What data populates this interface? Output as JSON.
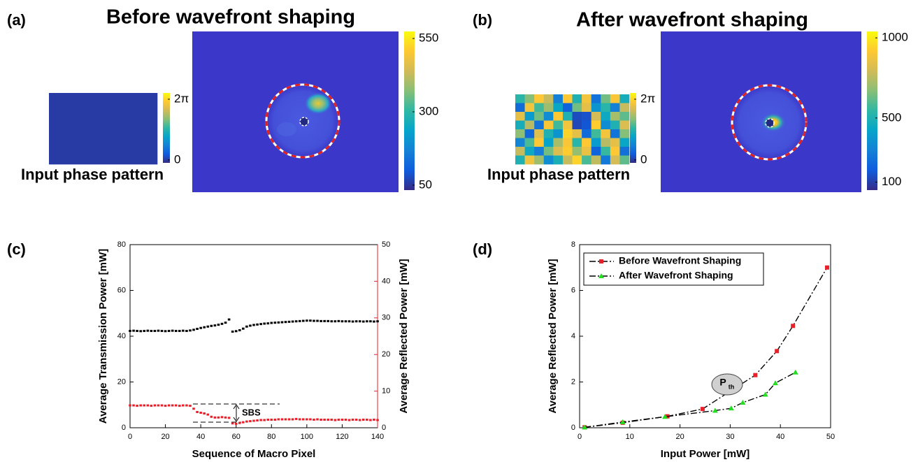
{
  "chart_data": [
    {
      "type": "image",
      "label": "(a)",
      "title": "Before wavefront shaping",
      "phase_pattern": {
        "caption": "Input phase pattern",
        "values": [
          [
            0
          ]
        ]
      },
      "phase_colorbar": {
        "lim": [
          -0.3,
          6.93
        ],
        "ticks": [
          0,
          {
            "value": 6.283,
            "label": "2π"
          }
        ]
      },
      "colorbar": {
        "lim": [
          33,
          574
        ],
        "ticks": [
          50,
          300,
          550
        ]
      }
    },
    {
      "type": "image",
      "label": "(b)",
      "title": "After wavefront shaping",
      "phase_pattern": {
        "caption": "Input phase pattern",
        "values": [
          [
            3.2,
            4.2,
            6.0,
            5.0,
            1.5,
            6.0,
            3.0,
            5.8,
            1.2,
            4.0,
            5.9,
            2.8
          ],
          [
            1.0,
            5.8,
            3.5,
            4.5,
            2.5,
            0.8,
            4.0,
            5.5,
            2.0,
            3.2,
            1.5,
            5.0
          ],
          [
            5.5,
            2.2,
            4.0,
            1.8,
            6.0,
            3.0,
            0.3,
            0.4,
            5.2,
            2.6,
            4.6,
            3.8
          ],
          [
            2.8,
            4.8,
            1.2,
            5.9,
            3.5,
            5.8,
            0.2,
            0.5,
            6.1,
            1.8,
            3.0,
            5.3
          ],
          [
            4.3,
            0.9,
            5.4,
            3.0,
            2.0,
            6.2,
            5.5,
            1.0,
            3.5,
            5.8,
            1.2,
            4.2
          ],
          [
            1.6,
            3.6,
            6.0,
            2.4,
            4.6,
            5.9,
            3.2,
            6.0,
            2.2,
            4.8,
            5.5,
            2.5
          ],
          [
            5.0,
            2.6,
            1.4,
            4.0,
            5.3,
            6.1,
            4.4,
            5.6,
            0.8,
            3.4,
            6.0,
            1.1
          ],
          [
            3.0,
            5.7,
            4.5,
            1.8,
            2.9,
            5.0,
            6.2,
            3.6,
            4.9,
            1.3,
            5.2,
            3.8
          ]
        ]
      },
      "phase_colorbar": {
        "lim": [
          -0.3,
          6.93
        ],
        "ticks": [
          0,
          {
            "value": 6.283,
            "label": "2π"
          }
        ]
      },
      "colorbar": {
        "lim": [
          50,
          1040
        ],
        "ticks": [
          100,
          500,
          1000
        ]
      }
    },
    {
      "type": "scatter",
      "label": "(c)",
      "xlabel": "Sequence of Macro Pixel",
      "ylabel": "Average Transmission Power [mW]",
      "y2label": "Average Reflected Power [mW]",
      "y2color": "#e8202a",
      "xlim": [
        0,
        140
      ],
      "xticks": [
        0,
        20,
        40,
        60,
        80,
        100,
        120,
        140
      ],
      "ylim": [
        0,
        80
      ],
      "yticks": [
        0,
        20,
        40,
        60,
        80
      ],
      "y2lim": [
        0,
        50
      ],
      "y2ticks": [
        0,
        10,
        20,
        30,
        40,
        50
      ],
      "annotations": [
        {
          "text": "SBS"
        }
      ],
      "x": [
        0,
        2,
        4,
        6,
        8,
        10,
        12,
        14,
        16,
        18,
        20,
        22,
        24,
        26,
        28,
        30,
        32,
        34,
        36,
        38,
        40,
        42,
        44,
        46,
        48,
        50,
        52,
        54,
        56,
        58,
        60,
        62,
        64,
        66,
        68,
        70,
        72,
        74,
        76,
        78,
        80,
        82,
        84,
        86,
        88,
        90,
        92,
        94,
        96,
        98,
        100,
        102,
        104,
        106,
        108,
        110,
        112,
        114,
        116,
        118,
        120,
        122,
        124,
        126,
        128,
        130,
        132,
        134,
        136,
        138,
        140
      ],
      "series": [
        {
          "color": "#000000",
          "values": [
            42.3,
            42.4,
            42.3,
            42.2,
            42.3,
            42.4,
            42.3,
            42.3,
            42.4,
            42.3,
            42.2,
            42.3,
            42.4,
            42.3,
            42.3,
            42.4,
            42.3,
            42.5,
            42.8,
            43.2,
            43.6,
            43.9,
            44.2,
            44.5,
            44.7,
            45.0,
            45.4,
            45.9,
            47.3,
            42.0,
            42.2,
            42.6,
            43.3,
            44.2,
            44.6,
            44.9,
            45.1,
            45.3,
            45.5,
            45.6,
            45.8,
            45.9,
            46.0,
            46.1,
            46.2,
            46.3,
            46.4,
            46.5,
            46.6,
            46.7,
            46.8,
            46.8,
            46.7,
            46.7,
            46.6,
            46.6,
            46.6,
            46.5,
            46.5,
            46.6,
            46.5,
            46.5,
            46.5,
            46.4,
            46.5,
            46.5,
            46.4,
            46.5,
            46.5,
            46.4,
            46.5
          ]
        },
        {
          "color": "#e8202a",
          "axis": "y2",
          "values": [
            6.1,
            6.1,
            6.0,
            6.1,
            6.1,
            6.1,
            6.0,
            6.1,
            6.1,
            6.1,
            6.0,
            6.1,
            6.1,
            6.1,
            6.0,
            6.1,
            6.1,
            6.0,
            5.2,
            4.3,
            4.1,
            3.9,
            3.6,
            3.0,
            2.8,
            2.8,
            2.9,
            2.8,
            2.7,
            1.2,
            1.1,
            1.3,
            1.5,
            1.7,
            1.8,
            1.9,
            2.0,
            2.1,
            2.1,
            2.2,
            2.2,
            2.2,
            2.3,
            2.3,
            2.3,
            2.3,
            2.3,
            2.4,
            2.3,
            2.3,
            2.3,
            2.3,
            2.2,
            2.3,
            2.2,
            2.2,
            2.2,
            2.2,
            2.1,
            2.2,
            2.2,
            2.2,
            2.1,
            2.2,
            2.2,
            2.1,
            2.2,
            2.2,
            2.1,
            2.2,
            2.1
          ]
        }
      ]
    },
    {
      "type": "line",
      "label": "(d)",
      "xlabel": "Input Power [mW]",
      "ylabel": "Average Reflected Power [mW]",
      "xlim": [
        0,
        50
      ],
      "xticks": [
        0,
        10,
        20,
        30,
        40,
        50
      ],
      "ylim": [
        0,
        8
      ],
      "yticks": [
        0,
        2,
        4,
        6,
        8
      ],
      "line_color": "#000000",
      "legend": "upper left",
      "annotations": [
        {
          "text": "P",
          "subscript": "th"
        }
      ],
      "series": [
        {
          "name": "Before Wavefront Shaping",
          "color": "#e8202a",
          "marker": "square",
          "x": [
            1,
            8.6,
            17.5,
            24.5,
            35,
            39.3,
            42.5,
            49.3
          ],
          "values": [
            0.02,
            0.22,
            0.5,
            0.82,
            2.3,
            3.35,
            4.45,
            7.0
          ]
        },
        {
          "name": "After Wavefront Shaping",
          "color": "#22dd22",
          "marker": "triangle",
          "x": [
            1,
            8.6,
            17,
            27,
            30.2,
            32.5,
            37,
            39,
            43
          ],
          "values": [
            0.02,
            0.25,
            0.48,
            0.75,
            0.85,
            1.1,
            1.45,
            1.95,
            2.42
          ]
        }
      ]
    }
  ]
}
